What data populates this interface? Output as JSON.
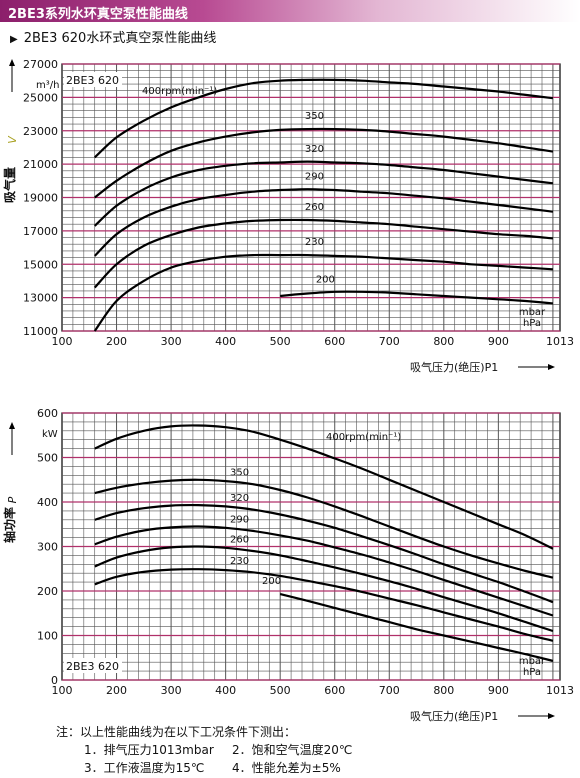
{
  "header": {
    "title": "2BE3系列水环真空泵性能曲线",
    "subtitle": "2BE3 620水环式真空泵性能曲线"
  },
  "colors": {
    "banner": "#b84a92",
    "gridline_major": "#b0306a",
    "gridline_minor": "#555555",
    "curve": "#000000"
  },
  "notes": {
    "title": "注：以上性能曲线为在以下工况条件下测出：",
    "items": [
      "1．排气压力1013mbar",
      "2．饱和空气温度20℃",
      "3．工作液温度为15℃",
      "4．性能允差为±5%"
    ]
  },
  "chart_data": [
    {
      "type": "line",
      "model_label": "2BE3 620",
      "ylabel": "吸气量",
      "ylabel_symbol": "V",
      "yunit": "m³/h",
      "xlabel": "吸气压力(绝压)P1",
      "xunit": [
        "mbar",
        "hPa"
      ],
      "x_ticks": [
        "100",
        "200",
        "300",
        "400",
        "500",
        "600",
        "700",
        "800",
        "900",
        "1013"
      ],
      "y_ticks": [
        "11000",
        "13000",
        "15000",
        "17000",
        "19000",
        "21000",
        "23000",
        "25000",
        "27000"
      ],
      "xlim": [
        100,
        1013
      ],
      "ylim": [
        11000,
        27000
      ],
      "grid": true,
      "series": [
        {
          "name": "400rpm(min-1)",
          "x": [
            160,
            200,
            250,
            300,
            350,
            400,
            450,
            500,
            550,
            600,
            650,
            700,
            750,
            800,
            850,
            900,
            950,
            1000
          ],
          "values": [
            21400,
            22600,
            23600,
            24400,
            25000,
            25500,
            25850,
            26000,
            26050,
            26050,
            26000,
            25900,
            25800,
            25650,
            25500,
            25350,
            25150,
            24950
          ]
        },
        {
          "name": "350",
          "x": [
            160,
            200,
            250,
            300,
            350,
            400,
            450,
            500,
            550,
            600,
            650,
            700,
            750,
            800,
            850,
            900,
            950,
            1000
          ],
          "values": [
            19000,
            20000,
            21000,
            21800,
            22300,
            22650,
            22900,
            23050,
            23100,
            23100,
            23050,
            22950,
            22800,
            22650,
            22450,
            22250,
            22000,
            21750
          ]
        },
        {
          "name": "320",
          "x": [
            160,
            200,
            250,
            300,
            350,
            400,
            450,
            500,
            550,
            600,
            650,
            700,
            750,
            800,
            850,
            900,
            950,
            1000
          ],
          "values": [
            17300,
            18500,
            19500,
            20200,
            20650,
            20900,
            21050,
            21100,
            21150,
            21100,
            21050,
            20950,
            20800,
            20650,
            20450,
            20250,
            20050,
            19850
          ]
        },
        {
          "name": "290",
          "x": [
            160,
            200,
            250,
            300,
            350,
            400,
            450,
            500,
            550,
            600,
            650,
            700,
            750,
            800,
            850,
            900,
            950,
            1000
          ],
          "values": [
            15500,
            16800,
            17800,
            18450,
            18900,
            19150,
            19350,
            19450,
            19500,
            19450,
            19350,
            19250,
            19100,
            18950,
            18750,
            18550,
            18350,
            18150
          ]
        },
        {
          "name": "260",
          "x": [
            160,
            200,
            250,
            300,
            350,
            400,
            450,
            500,
            550,
            600,
            650,
            700,
            750,
            800,
            850,
            900,
            950,
            1000
          ],
          "values": [
            13600,
            15000,
            16100,
            16750,
            17200,
            17450,
            17600,
            17650,
            17650,
            17600,
            17500,
            17400,
            17250,
            17100,
            16950,
            16800,
            16700,
            16550
          ]
        },
        {
          "name": "230",
          "x": [
            160,
            200,
            250,
            300,
            350,
            400,
            450,
            500,
            550,
            600,
            650,
            700,
            750,
            800,
            850,
            900,
            950,
            1000
          ],
          "values": [
            11000,
            12800,
            14000,
            14800,
            15200,
            15450,
            15550,
            15550,
            15550,
            15500,
            15450,
            15350,
            15250,
            15150,
            15000,
            14900,
            14800,
            14700
          ]
        },
        {
          "name": "200",
          "x": [
            500,
            550,
            600,
            650,
            700,
            750,
            800,
            850,
            900,
            950,
            1000
          ],
          "values": [
            13100,
            13250,
            13350,
            13350,
            13300,
            13200,
            13100,
            13000,
            12900,
            12800,
            12650
          ]
        }
      ]
    },
    {
      "type": "line",
      "model_label": "2BE3 620",
      "ylabel": "轴功率",
      "ylabel_symbol": "P",
      "yunit": "kW",
      "xlabel": "吸气压力(绝压)P1",
      "xunit": [
        "mbar",
        "hPa"
      ],
      "x_ticks": [
        "100",
        "200",
        "300",
        "400",
        "500",
        "600",
        "700",
        "800",
        "900",
        "1013"
      ],
      "y_ticks": [
        "0",
        "100",
        "200",
        "300",
        "400",
        "500",
        "600"
      ],
      "xlim": [
        100,
        1013
      ],
      "ylim": [
        0,
        600
      ],
      "grid": true,
      "series": [
        {
          "name": "400rpm(min-1)",
          "x": [
            160,
            200,
            250,
            300,
            350,
            400,
            450,
            500,
            550,
            600,
            650,
            700,
            750,
            800,
            850,
            900,
            950,
            1000
          ],
          "values": [
            520,
            542,
            560,
            570,
            572,
            568,
            558,
            540,
            520,
            498,
            475,
            450,
            425,
            400,
            375,
            350,
            325,
            295
          ]
        },
        {
          "name": "350",
          "x": [
            160,
            200,
            250,
            300,
            350,
            400,
            450,
            500,
            550,
            600,
            650,
            700,
            750,
            800,
            850,
            900,
            950,
            1000
          ],
          "values": [
            420,
            432,
            442,
            448,
            450,
            447,
            440,
            427,
            410,
            390,
            368,
            345,
            322,
            300,
            280,
            262,
            245,
            230
          ]
        },
        {
          "name": "320",
          "x": [
            160,
            200,
            250,
            300,
            350,
            400,
            450,
            500,
            550,
            600,
            650,
            700,
            750,
            800,
            850,
            900,
            950,
            1000
          ],
          "values": [
            360,
            375,
            386,
            392,
            393,
            390,
            383,
            372,
            358,
            342,
            323,
            303,
            282,
            260,
            240,
            220,
            198,
            175
          ]
        },
        {
          "name": "290",
          "x": [
            160,
            200,
            250,
            300,
            350,
            400,
            450,
            500,
            550,
            600,
            650,
            700,
            750,
            800,
            850,
            900,
            950,
            1000
          ],
          "values": [
            305,
            322,
            336,
            343,
            345,
            342,
            335,
            325,
            313,
            298,
            282,
            264,
            245,
            225,
            205,
            185,
            165,
            145
          ]
        },
        {
          "name": "260",
          "x": [
            160,
            200,
            250,
            300,
            350,
            400,
            450,
            500,
            550,
            600,
            650,
            700,
            750,
            800,
            850,
            900,
            950,
            1000
          ],
          "values": [
            255,
            275,
            290,
            298,
            300,
            297,
            290,
            280,
            267,
            253,
            238,
            222,
            205,
            186,
            168,
            150,
            130,
            110
          ]
        },
        {
          "name": "230",
          "x": [
            160,
            200,
            250,
            300,
            350,
            400,
            450,
            500,
            550,
            600,
            650,
            700,
            750,
            800,
            850,
            900,
            950,
            1000
          ],
          "values": [
            215,
            232,
            243,
            248,
            249,
            247,
            242,
            234,
            223,
            211,
            198,
            183,
            168,
            152,
            136,
            120,
            103,
            88
          ]
        },
        {
          "name": "200",
          "x": [
            500,
            550,
            600,
            650,
            700,
            750,
            800,
            850,
            900,
            950,
            1000
          ],
          "values": [
            193,
            178,
            162,
            146,
            130,
            114,
            100,
            86,
            72,
            58,
            43
          ]
        }
      ]
    }
  ]
}
